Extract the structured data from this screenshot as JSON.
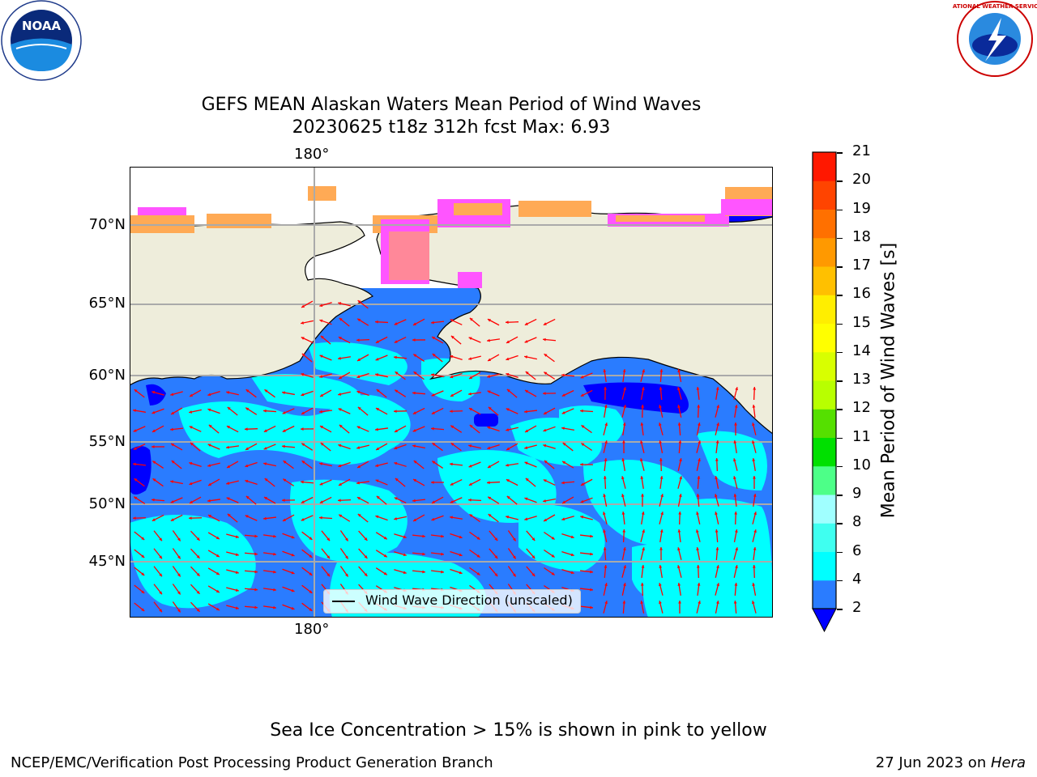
{
  "title_line1": "GEFS MEAN Alaskan Waters Mean Period of Wind Waves",
  "title_line2": "20230625 t18z 312h fcst   Max: 6.93",
  "lon_label_top": "180°",
  "lon_label_bottom": "180°",
  "lat_labels": [
    "70°N",
    "65°N",
    "60°N",
    "55°N",
    "50°N",
    "45°N"
  ],
  "legend_label": "Wind Wave Direction (unscaled)",
  "colorbar": {
    "label": "Mean Period of Wind Waves [s]",
    "ticks": [
      "2",
      "4",
      "6",
      "8",
      "9",
      "10",
      "11",
      "12",
      "13",
      "14",
      "15",
      "16",
      "17",
      "18",
      "19",
      "20",
      "21"
    ],
    "colors": [
      "#2a7cff",
      "#00ffff",
      "#3ffff0",
      "#a0ffff",
      "#4dff88",
      "#00e000",
      "#55e000",
      "#b8ff00",
      "#d8ff00",
      "#ffff00",
      "#ffee00",
      "#ffc000",
      "#ff9900",
      "#ff7000",
      "#ff4400",
      "#ff1800"
    ],
    "under_color": "#0000ff"
  },
  "field_colors": {
    "ocean_dark": "#2a7cff",
    "ocean_light": "#00ffff",
    "deep_blue": "#0000ff",
    "land": "#eeeddb",
    "ice_pink": "#ff55ff",
    "ice_orange": "#ffaa55",
    "arrow": "#ff0000"
  },
  "logos": {
    "noaa_text": "NOAA",
    "nws_text": "NATIONAL WEATHER SERVICE"
  },
  "footer_note": "Sea Ice Concentration > 15% is shown in pink to yellow",
  "footer_left": "NCEP/EMC/Verification Post Processing Product Generation Branch",
  "footer_right_date": "27 Jun 2023 on ",
  "footer_right_host": "Hera"
}
